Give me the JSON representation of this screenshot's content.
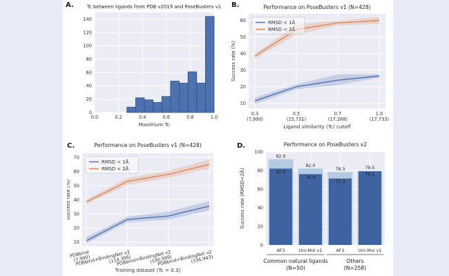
{
  "page": {
    "background_color": "#e8eaf7",
    "figure_background_color": "#ffffff"
  },
  "colors": {
    "blue": "#4C72B0",
    "orange": "#DD8452",
    "hist_bar_fill": "#4C72B0",
    "hist_bar_edge": "#30507f",
    "dark_bar": "#3e63a0",
    "light_bar": "#b5cbe2",
    "plot_background": "#eaebf4",
    "gridline": "#ffffff",
    "text": "#333333",
    "title_text": "#262626",
    "group_line": "#707070"
  },
  "chart_data": [
    {
      "panel_label": "A.",
      "type": "histogram",
      "title": "Tc between ligands from PDB v2019 and PoseBusters v1",
      "xlabel": "Maximum Tc",
      "ylabel": "",
      "xlim": [
        0.0,
        1.0
      ],
      "ylim": [
        0,
        150
      ],
      "x_ticks": [
        "0.0",
        "0.2",
        "0.4",
        "0.6",
        "0.8",
        "1.0"
      ],
      "x_tick_values": [
        0.0,
        0.2,
        0.4,
        0.6,
        0.8,
        1.0
      ],
      "y_ticks": [
        0,
        20,
        40,
        60,
        80,
        100,
        120,
        140
      ],
      "bin_start": 0.27,
      "bin_width": 0.073,
      "values": [
        8,
        22,
        19,
        15,
        24,
        47,
        44,
        61,
        44,
        144
      ],
      "grid": true
    },
    {
      "panel_label": "B.",
      "type": "line",
      "title": "Performance on PoseBusters v1 (N=428)",
      "xlabel": "Ligand similarity (Tc) cutoff",
      "ylabel": "Success rate (%)",
      "ylim": [
        7,
        64
      ],
      "y_ticks": [
        10,
        20,
        30,
        40,
        50,
        60
      ],
      "categories": [
        [
          "0.3",
          "(7,990)"
        ],
        [
          "0.5",
          "(15,731)"
        ],
        [
          "0.7",
          "(17,268)"
        ],
        [
          "1.0",
          "(17,733)"
        ]
      ],
      "rotate_x_labels": false,
      "legend": [
        "RMSD < 1Å",
        "RMSD < 2Å"
      ],
      "legend_position": "upper left",
      "grid": true,
      "series": [
        {
          "name": "RMSD < 1Å",
          "color": "blue",
          "values": [
            11.5,
            20,
            24,
            26.5
          ],
          "lower": [
            9.5,
            18.5,
            21,
            25.5
          ],
          "upper": [
            13.5,
            21.5,
            27.5,
            27.5
          ]
        },
        {
          "name": "RMSD < 2Å",
          "color": "orange",
          "values": [
            38.5,
            54.5,
            58.5,
            60
          ],
          "lower": [
            37,
            51.5,
            57,
            58
          ],
          "upper": [
            40,
            57.5,
            60,
            62
          ]
        }
      ]
    },
    {
      "panel_label": "C.",
      "type": "line",
      "title": "Performance on PoseBusters v1 (N=428)",
      "xlabel": "Training dataset (Tc = 0.3)",
      "ylabel": "Success rate (%)",
      "ylim": [
        7,
        73
      ],
      "y_ticks": [
        10,
        20,
        30,
        40,
        50,
        60,
        70
      ],
      "categories": [
        [
          "PDBbind",
          "(7,990)"
        ],
        [
          "PDBbind+BindingNet v2",
          "(114,366)"
        ],
        [
          "PDBbind+BindingNet v2",
          "(190,999)"
        ],
        [
          "PDBbind+BindingNet v2",
          "(336,943)"
        ]
      ],
      "rotate_x_labels": true,
      "legend": [
        "RMSD < 1Å",
        "RMSD < 2Å"
      ],
      "legend_position": "upper left",
      "grid": true,
      "series": [
        {
          "name": "RMSD < 1Å",
          "color": "blue",
          "values": [
            11,
            26,
            28.5,
            35.5
          ],
          "lower": [
            9,
            24,
            26,
            32.5
          ],
          "upper": [
            13.5,
            28,
            31.5,
            39
          ]
        },
        {
          "name": "RMSD < 2Å",
          "color": "orange",
          "values": [
            38.5,
            53,
            58,
            65
          ],
          "lower": [
            37,
            50.5,
            55.5,
            62
          ],
          "upper": [
            40,
            55.5,
            60.5,
            68.5
          ]
        }
      ]
    },
    {
      "panel_label": "D.",
      "type": "overlay_bar",
      "title": "Performance on PoseBusters v2",
      "xlabel": "",
      "ylabel": "Success rate (RMSD<2Å)",
      "ylim": [
        0,
        100
      ],
      "y_ticks": [
        0,
        20,
        40,
        60,
        80,
        100
      ],
      "categories": [
        "AF3",
        "Uni-Mol v1",
        "AF3",
        "Uni-Mol v1"
      ],
      "back_values": [
        92.0,
        82.0,
        78.3,
        79.5
      ],
      "front_values": [
        82.0,
        76.0,
        71.3,
        79.1
      ],
      "back_labels": [
        "92.0",
        "82.0",
        "78.3",
        "79.5"
      ],
      "front_labels": [
        "82.0",
        "76.0",
        "71.3",
        "79.1"
      ],
      "grid": true,
      "groups": [
        {
          "label": "Common natural ligands",
          "sublabel": "(N=50)",
          "bars": [
            0,
            1
          ]
        },
        {
          "label": "Others",
          "sublabel": "(N=258)",
          "bars": [
            2,
            3
          ]
        }
      ]
    }
  ]
}
